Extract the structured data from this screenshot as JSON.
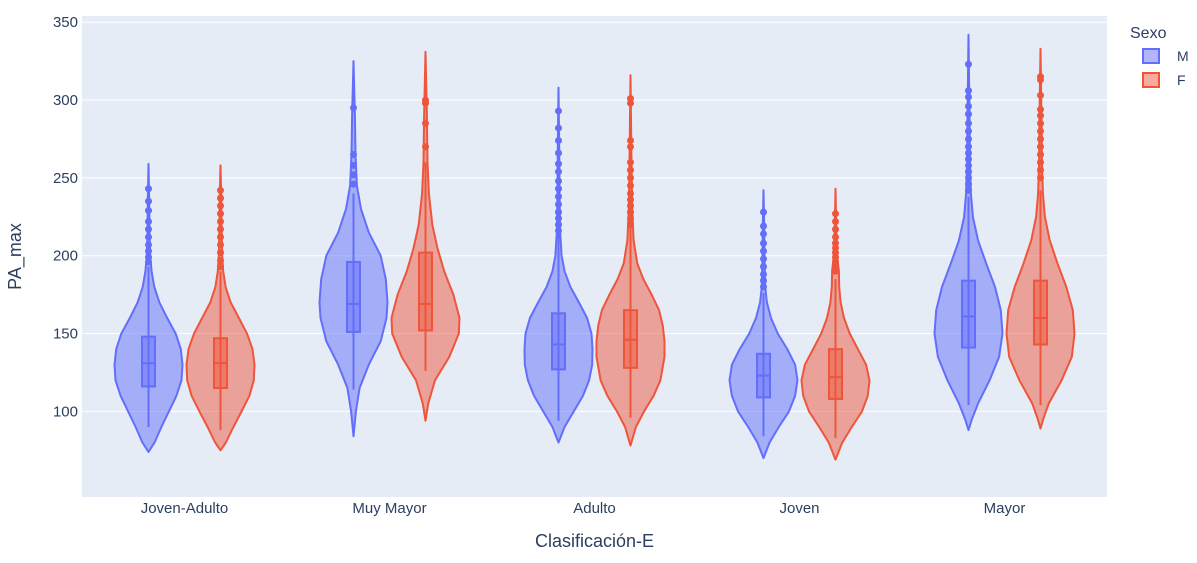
{
  "chart_data": {
    "type": "violin",
    "xlabel": "Clasificación-E",
    "ylabel": "PA_max",
    "ylim": [
      45,
      354
    ],
    "yticks": [
      100,
      150,
      200,
      250,
      300,
      350
    ],
    "categories": [
      "Joven-Adulto",
      "Muy Mayor",
      "Adulto",
      "Joven",
      "Mayor"
    ],
    "grid": true,
    "legend": {
      "title": "Sexo",
      "placement": "top-right"
    },
    "series": [
      {
        "name": "M",
        "color": "#636efa",
        "fill": "rgba(99,110,250,0.5)",
        "groups": [
          {
            "min": 74,
            "max": 259,
            "q1": 116,
            "median": 131,
            "q3": 148,
            "whisker_low": 90,
            "whisker_high": 193,
            "outliers": [
              243,
              235,
              229,
              222,
              217,
              212,
              207,
              203,
              199,
              196
            ],
            "profile": [
              [
                74,
                0
              ],
              [
                80,
                0.18
              ],
              [
                90,
                0.38
              ],
              [
                100,
                0.6
              ],
              [
                110,
                0.82
              ],
              [
                120,
                0.97
              ],
              [
                130,
                1.0
              ],
              [
                140,
                0.95
              ],
              [
                150,
                0.8
              ],
              [
                160,
                0.55
              ],
              [
                170,
                0.32
              ],
              [
                180,
                0.17
              ],
              [
                190,
                0.09
              ],
              [
                200,
                0.05
              ],
              [
                215,
                0.03
              ],
              [
                235,
                0.02
              ],
              [
                259,
                0
              ]
            ]
          },
          {
            "min": 84,
            "max": 325,
            "q1": 151,
            "median": 169,
            "q3": 196,
            "whisker_low": 114,
            "whisker_high": 240,
            "outliers": [
              295,
              265,
              258,
              252,
              246
            ],
            "profile": [
              [
                84,
                0
              ],
              [
                100,
                0.07
              ],
              [
                115,
                0.18
              ],
              [
                130,
                0.45
              ],
              [
                145,
                0.8
              ],
              [
                160,
                0.97
              ],
              [
                170,
                1.0
              ],
              [
                185,
                0.95
              ],
              [
                200,
                0.8
              ],
              [
                215,
                0.45
              ],
              [
                230,
                0.22
              ],
              [
                245,
                0.1
              ],
              [
                265,
                0.06
              ],
              [
                290,
                0.04
              ],
              [
                325,
                0
              ]
            ]
          },
          {
            "min": 80,
            "max": 308,
            "q1": 127,
            "median": 143,
            "q3": 163,
            "whisker_low": 94,
            "whisker_high": 215,
            "outliers": [
              293,
              282,
              274,
              266,
              259,
              254,
              248,
              243,
              238,
              233,
              228,
              224,
              220,
              216
            ],
            "profile": [
              [
                80,
                0
              ],
              [
                90,
                0.18
              ],
              [
                100,
                0.45
              ],
              [
                110,
                0.72
              ],
              [
                120,
                0.9
              ],
              [
                130,
                0.99
              ],
              [
                140,
                1.0
              ],
              [
                150,
                0.97
              ],
              [
                160,
                0.84
              ],
              [
                170,
                0.6
              ],
              [
                180,
                0.35
              ],
              [
                190,
                0.18
              ],
              [
                200,
                0.09
              ],
              [
                215,
                0.05
              ],
              [
                240,
                0.03
              ],
              [
                270,
                0.02
              ],
              [
                308,
                0
              ]
            ]
          },
          {
            "min": 70,
            "max": 242,
            "q1": 109,
            "median": 123,
            "q3": 137,
            "whisker_low": 84,
            "whisker_high": 176,
            "outliers": [
              228,
              219,
              214,
              208,
              203,
              198,
              193,
              188,
              184,
              180
            ],
            "profile": [
              [
                70,
                0
              ],
              [
                80,
                0.18
              ],
              [
                90,
                0.45
              ],
              [
                100,
                0.75
              ],
              [
                110,
                0.93
              ],
              [
                120,
                1.0
              ],
              [
                130,
                0.93
              ],
              [
                140,
                0.7
              ],
              [
                150,
                0.42
              ],
              [
                160,
                0.22
              ],
              [
                170,
                0.1
              ],
              [
                180,
                0.05
              ],
              [
                200,
                0.03
              ],
              [
                220,
                0.02
              ],
              [
                242,
                0
              ]
            ]
          },
          {
            "min": 88,
            "max": 342,
            "q1": 141,
            "median": 161,
            "q3": 184,
            "whisker_low": 104,
            "whisker_high": 238,
            "outliers": [
              323,
              306,
              302,
              296,
              291,
              285,
              280,
              275,
              270,
              266,
              262,
              258,
              254,
              250,
              246,
              242
            ],
            "profile": [
              [
                88,
                0
              ],
              [
                95,
                0.1
              ],
              [
                105,
                0.28
              ],
              [
                120,
                0.62
              ],
              [
                135,
                0.9
              ],
              [
                150,
                1.0
              ],
              [
                165,
                0.95
              ],
              [
                180,
                0.78
              ],
              [
                195,
                0.52
              ],
              [
                210,
                0.28
              ],
              [
                225,
                0.13
              ],
              [
                240,
                0.07
              ],
              [
                260,
                0.04
              ],
              [
                290,
                0.03
              ],
              [
                342,
                0
              ]
            ]
          }
        ]
      },
      {
        "name": "F",
        "color": "#ef553b",
        "fill": "rgba(239,85,59,0.5)",
        "groups": [
          {
            "min": 75,
            "max": 258,
            "q1": 115,
            "median": 131,
            "q3": 147,
            "whisker_low": 88,
            "whisker_high": 190,
            "outliers": [
              242,
              237,
              232,
              227,
              222,
              217,
              212,
              207,
              202,
              197,
              193
            ],
            "profile": [
              [
                75,
                0
              ],
              [
                80,
                0.16
              ],
              [
                90,
                0.38
              ],
              [
                100,
                0.62
              ],
              [
                110,
                0.85
              ],
              [
                120,
                0.98
              ],
              [
                130,
                1.0
              ],
              [
                140,
                0.94
              ],
              [
                150,
                0.78
              ],
              [
                160,
                0.54
              ],
              [
                170,
                0.3
              ],
              [
                180,
                0.15
              ],
              [
                190,
                0.08
              ],
              [
                200,
                0.05
              ],
              [
                220,
                0.03
              ],
              [
                240,
                0.02
              ],
              [
                258,
                0
              ]
            ]
          },
          {
            "min": 94,
            "max": 331,
            "q1": 152,
            "median": 169,
            "q3": 202,
            "whisker_low": 126,
            "whisker_high": 260,
            "outliers": [
              300,
              298,
              285,
              270
            ],
            "profile": [
              [
                94,
                0
              ],
              [
                105,
                0.08
              ],
              [
                120,
                0.28
              ],
              [
                135,
                0.7
              ],
              [
                150,
                0.98
              ],
              [
                160,
                1.0
              ],
              [
                175,
                0.82
              ],
              [
                190,
                0.55
              ],
              [
                205,
                0.35
              ],
              [
                220,
                0.2
              ],
              [
                240,
                0.1
              ],
              [
                260,
                0.06
              ],
              [
                290,
                0.04
              ],
              [
                331,
                0
              ]
            ]
          },
          {
            "min": 78,
            "max": 316,
            "q1": 128,
            "median": 146,
            "q3": 165,
            "whisker_low": 96,
            "whisker_high": 218,
            "outliers": [
              301,
              298,
              274,
              270,
              260,
              255,
              250,
              245,
              240,
              236,
              232,
              228,
              224,
              220
            ],
            "profile": [
              [
                78,
                0
              ],
              [
                90,
                0.16
              ],
              [
                100,
                0.4
              ],
              [
                110,
                0.68
              ],
              [
                120,
                0.88
              ],
              [
                135,
                1.0
              ],
              [
                145,
                1.0
              ],
              [
                155,
                0.95
              ],
              [
                165,
                0.84
              ],
              [
                175,
                0.62
              ],
              [
                185,
                0.38
              ],
              [
                195,
                0.2
              ],
              [
                210,
                0.09
              ],
              [
                230,
                0.05
              ],
              [
                260,
                0.03
              ],
              [
                316,
                0
              ]
            ]
          },
          {
            "min": 69,
            "max": 243,
            "q1": 108,
            "median": 122,
            "q3": 140,
            "whisker_low": 83,
            "whisker_high": 185,
            "outliers": [
              227,
              222,
              217,
              212,
              208,
              205,
              202,
              199,
              196,
              193,
              190
            ],
            "profile": [
              [
                69,
                0
              ],
              [
                80,
                0.2
              ],
              [
                90,
                0.48
              ],
              [
                100,
                0.78
              ],
              [
                110,
                0.95
              ],
              [
                120,
                1.0
              ],
              [
                130,
                0.9
              ],
              [
                140,
                0.66
              ],
              [
                150,
                0.42
              ],
              [
                160,
                0.25
              ],
              [
                170,
                0.15
              ],
              [
                180,
                0.11
              ],
              [
                190,
                0.1
              ],
              [
                200,
                0.05
              ],
              [
                220,
                0.02
              ],
              [
                243,
                0
              ]
            ]
          },
          {
            "min": 89,
            "max": 333,
            "q1": 143,
            "median": 160,
            "q3": 184,
            "whisker_low": 104,
            "whisker_high": 242,
            "outliers": [
              315,
              313,
              303,
              294,
              290,
              285,
              280,
              275,
              270,
              265,
              260,
              255,
              250
            ],
            "profile": [
              [
                89,
                0
              ],
              [
                95,
                0.08
              ],
              [
                105,
                0.24
              ],
              [
                120,
                0.62
              ],
              [
                135,
                0.92
              ],
              [
                150,
                1.0
              ],
              [
                165,
                0.95
              ],
              [
                180,
                0.76
              ],
              [
                195,
                0.5
              ],
              [
                210,
                0.27
              ],
              [
                225,
                0.13
              ],
              [
                240,
                0.07
              ],
              [
                260,
                0.04
              ],
              [
                290,
                0.03
              ],
              [
                333,
                0
              ]
            ]
          }
        ]
      }
    ]
  }
}
